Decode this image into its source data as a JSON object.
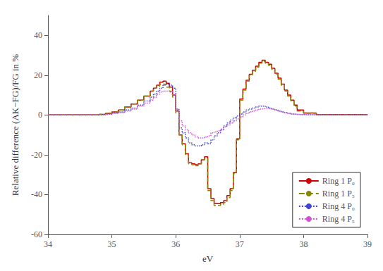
{
  "chart_data": {
    "type": "step",
    "xlabel": "eV",
    "ylabel": "Relative difference (AK−FG)/FG in %",
    "xlim": [
      34,
      39
    ],
    "ylim": [
      -60,
      50
    ],
    "xticks": [
      34,
      35,
      36,
      37,
      38,
      39
    ],
    "yticks": [
      -60,
      -40,
      -20,
      0,
      20,
      40
    ],
    "grid": false,
    "legend": "lower right",
    "series": [
      {
        "name": "Ring 1 P₀",
        "color": "#cc0000",
        "line_style": "solid",
        "x": [
          34.0,
          34.7,
          34.8,
          34.9,
          35.0,
          35.1,
          35.2,
          35.3,
          35.4,
          35.5,
          35.6,
          35.65,
          35.7,
          35.75,
          35.8,
          35.85,
          35.9,
          35.95,
          36.0,
          36.05,
          36.1,
          36.15,
          36.2,
          36.25,
          36.3,
          36.35,
          36.4,
          36.45,
          36.5,
          36.55,
          36.6,
          36.65,
          36.7,
          36.75,
          36.8,
          36.85,
          36.9,
          36.95,
          37.0,
          37.05,
          37.1,
          37.15,
          37.2,
          37.25,
          37.3,
          37.35,
          37.4,
          37.45,
          37.5,
          37.55,
          37.6,
          37.65,
          37.7,
          37.75,
          37.8,
          37.85,
          37.9,
          38.0,
          38.2,
          39.0
        ],
        "values": [
          0.0,
          0.0,
          0.3,
          0.8,
          1.5,
          2.5,
          4.0,
          5.5,
          7.5,
          9.5,
          12.0,
          13.5,
          15.0,
          16.5,
          17.0,
          16.0,
          14.0,
          10.0,
          2.0,
          -10.0,
          -14.5,
          -19.5,
          -24.0,
          -24.5,
          -25.0,
          -24.5,
          -22.5,
          -21.0,
          -37.0,
          -42.0,
          -44.5,
          -44.5,
          -44.0,
          -43.0,
          -40.5,
          -37.0,
          -29.0,
          -12.0,
          8.0,
          13.0,
          17.5,
          20.5,
          22.5,
          24.5,
          26.5,
          27.5,
          26.5,
          25.5,
          23.5,
          21.0,
          18.5,
          15.5,
          12.5,
          10.0,
          7.5,
          5.0,
          2.5,
          1.0,
          0.2,
          0.0
        ]
      },
      {
        "name": "Ring 1 P₅",
        "color": "#888800",
        "line_style": "dashed",
        "x": [
          34.0,
          34.7,
          34.8,
          34.9,
          35.0,
          35.1,
          35.2,
          35.3,
          35.4,
          35.5,
          35.6,
          35.65,
          35.7,
          35.75,
          35.8,
          35.85,
          35.9,
          35.95,
          36.0,
          36.05,
          36.1,
          36.15,
          36.2,
          36.25,
          36.3,
          36.35,
          36.4,
          36.45,
          36.5,
          36.55,
          36.6,
          36.65,
          36.7,
          36.75,
          36.8,
          36.85,
          36.9,
          36.95,
          37.0,
          37.05,
          37.1,
          37.15,
          37.2,
          37.25,
          37.3,
          37.35,
          37.4,
          37.45,
          37.5,
          37.55,
          37.6,
          37.65,
          37.7,
          37.75,
          37.8,
          37.85,
          37.9,
          38.0,
          38.2,
          39.0
        ],
        "values": [
          0.0,
          0.0,
          0.3,
          0.8,
          1.5,
          2.5,
          4.0,
          5.5,
          7.5,
          9.5,
          12.0,
          13.5,
          14.5,
          15.5,
          15.5,
          14.0,
          12.0,
          9.0,
          1.0,
          -10.0,
          -15.0,
          -20.0,
          -24.5,
          -25.0,
          -25.5,
          -24.5,
          -22.5,
          -22.0,
          -38.0,
          -43.0,
          -45.5,
          -45.5,
          -45.0,
          -44.0,
          -41.5,
          -38.0,
          -29.5,
          -12.5,
          7.5,
          12.5,
          17.0,
          20.0,
          22.0,
          24.0,
          26.0,
          27.0,
          26.0,
          25.0,
          23.0,
          20.5,
          18.0,
          15.0,
          12.0,
          9.5,
          7.0,
          4.5,
          2.0,
          0.8,
          0.1,
          0.0
        ]
      },
      {
        "name": "Ring 4 P₀",
        "color": "#4444cc",
        "line_style": "dotted",
        "x": [
          34.0,
          34.7,
          34.8,
          34.9,
          35.0,
          35.1,
          35.2,
          35.3,
          35.4,
          35.5,
          35.6,
          35.65,
          35.7,
          35.75,
          35.8,
          35.85,
          35.9,
          35.95,
          36.0,
          36.05,
          36.1,
          36.15,
          36.2,
          36.25,
          36.3,
          36.35,
          36.4,
          36.45,
          36.5,
          36.55,
          36.6,
          36.65,
          36.7,
          36.75,
          36.8,
          36.85,
          36.9,
          36.95,
          37.0,
          37.05,
          37.1,
          37.15,
          37.2,
          37.25,
          37.3,
          37.35,
          37.4,
          37.45,
          37.5,
          37.55,
          37.6,
          37.65,
          37.7,
          37.75,
          37.8,
          37.85,
          37.9,
          38.0,
          38.2,
          39.0
        ],
        "values": [
          0.0,
          0.0,
          0.2,
          0.5,
          1.0,
          1.5,
          2.5,
          3.5,
          5.0,
          7.0,
          9.0,
          10.5,
          12.0,
          13.5,
          15.0,
          15.5,
          15.0,
          13.5,
          3.0,
          -6.5,
          -9.0,
          -11.5,
          -14.0,
          -15.0,
          -15.5,
          -15.5,
          -15.0,
          -14.0,
          -14.5,
          -12.5,
          -10.5,
          -9.0,
          -7.5,
          -5.5,
          -4.0,
          -2.5,
          -1.5,
          -0.5,
          0.5,
          1.5,
          2.5,
          3.0,
          3.5,
          4.0,
          4.5,
          4.5,
          4.0,
          3.5,
          3.0,
          2.5,
          2.0,
          1.5,
          1.2,
          0.8,
          0.5,
          0.3,
          0.2,
          0.1,
          0.0,
          0.0
        ]
      },
      {
        "name": "Ring 4 P₅",
        "color": "#cc55cc",
        "line_style": "dotted",
        "x": [
          34.0,
          34.7,
          34.8,
          34.9,
          35.0,
          35.1,
          35.2,
          35.3,
          35.4,
          35.5,
          35.6,
          35.65,
          35.7,
          35.75,
          35.8,
          35.85,
          35.9,
          35.95,
          36.0,
          36.05,
          36.1,
          36.15,
          36.2,
          36.25,
          36.3,
          36.35,
          36.4,
          36.45,
          36.5,
          36.55,
          36.6,
          36.65,
          36.7,
          36.75,
          36.8,
          36.85,
          36.9,
          36.95,
          37.0,
          37.05,
          37.1,
          37.15,
          37.2,
          37.25,
          37.3,
          37.35,
          37.4,
          37.45,
          37.5,
          37.55,
          37.6,
          37.65,
          37.7,
          37.75,
          37.8,
          37.85,
          37.9,
          38.0,
          38.2,
          39.0
        ],
        "values": [
          0.0,
          0.0,
          0.2,
          0.4,
          0.8,
          1.2,
          2.0,
          3.0,
          4.5,
          6.0,
          7.5,
          9.0,
          10.5,
          11.5,
          12.0,
          12.0,
          11.5,
          10.0,
          2.5,
          -3.0,
          -5.5,
          -7.5,
          -9.0,
          -10.0,
          -11.0,
          -11.5,
          -11.5,
          -11.0,
          -10.5,
          -9.0,
          -8.5,
          -8.0,
          -7.0,
          -6.0,
          -5.0,
          -4.0,
          -3.0,
          -2.0,
          -1.0,
          0.0,
          0.8,
          1.5,
          2.0,
          2.5,
          3.0,
          3.2,
          3.2,
          3.0,
          2.8,
          2.5,
          2.0,
          1.5,
          1.2,
          0.8,
          0.5,
          0.3,
          0.2,
          0.1,
          0.0,
          0.0
        ]
      }
    ]
  }
}
